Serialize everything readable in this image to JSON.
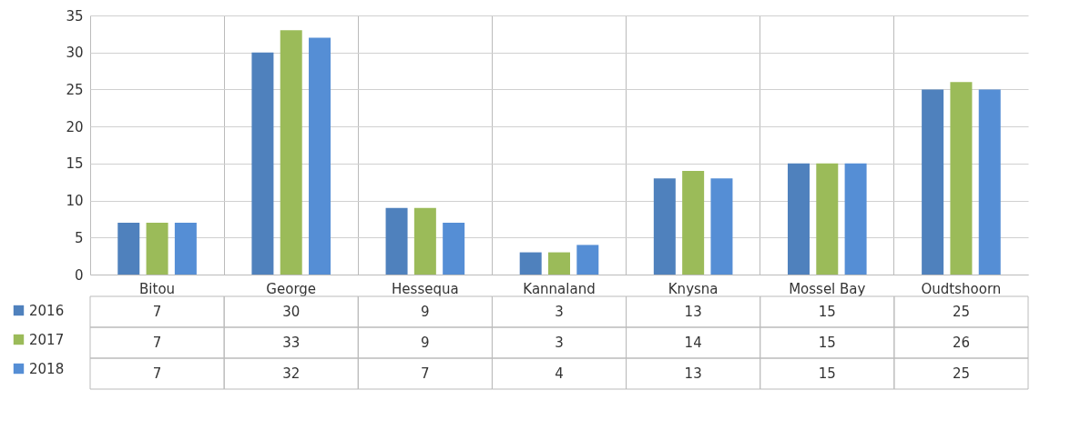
{
  "chart_data": {
    "type": "bar",
    "categories": [
      "Bitou",
      "George",
      "Hessequa",
      "Kannaland",
      "Knysna",
      "Mossel Bay",
      "Oudtshoorn"
    ],
    "series": [
      {
        "name": "2016",
        "color": "#4f81bd",
        "values": [
          7,
          30,
          9,
          3,
          13,
          15,
          25
        ]
      },
      {
        "name": "2017",
        "color": "#9bbb59",
        "values": [
          7,
          33,
          9,
          3,
          14,
          15,
          26
        ]
      },
      {
        "name": "2018",
        "color": "#558ed5",
        "values": [
          7,
          32,
          7,
          4,
          13,
          15,
          25
        ]
      }
    ],
    "ylim": [
      0,
      35
    ],
    "yticks": [
      0,
      5,
      10,
      15,
      20,
      25,
      30,
      35
    ],
    "grid": "y",
    "legend": "bottom left",
    "data_labels": true
  }
}
